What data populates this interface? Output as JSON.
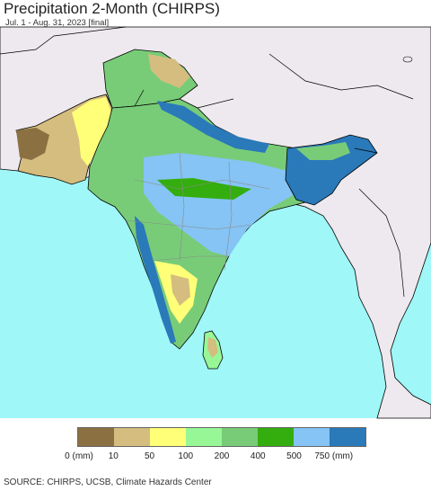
{
  "title": "Precipitation 2-Month (CHIRPS)",
  "subtitle": "Jul. 1 - Aug. 31, 2023 [final]",
  "source": "SOURCE: CHIRPS, UCSB, Climate Hazards Center",
  "colors": {
    "ocean": "#9ff7f7",
    "land_outside": "#eee9ef",
    "border": "#000000",
    "state_border": "#8a8a8a"
  },
  "legend": {
    "colors": [
      "#8b7042",
      "#d4bd7e",
      "#ffff78",
      "#97f797",
      "#78cc78",
      "#34ad0e",
      "#85c4f4",
      "#2a79b9"
    ],
    "labels": [
      "0 (mm)",
      "10",
      "50",
      "100",
      "200",
      "400",
      "500",
      "750 (mm)"
    ]
  }
}
